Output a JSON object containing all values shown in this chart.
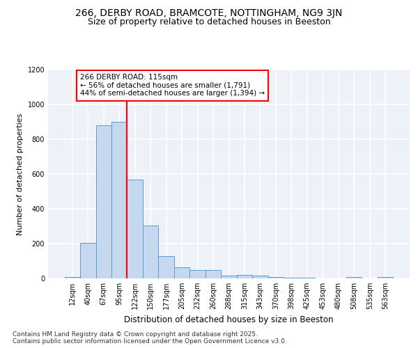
{
  "title1": "266, DERBY ROAD, BRAMCOTE, NOTTINGHAM, NG9 3JN",
  "title2": "Size of property relative to detached houses in Beeston",
  "xlabel": "Distribution of detached houses by size in Beeston",
  "ylabel": "Number of detached properties",
  "categories": [
    "12sqm",
    "40sqm",
    "67sqm",
    "95sqm",
    "122sqm",
    "150sqm",
    "177sqm",
    "205sqm",
    "232sqm",
    "260sqm",
    "288sqm",
    "315sqm",
    "343sqm",
    "370sqm",
    "398sqm",
    "425sqm",
    "453sqm",
    "480sqm",
    "508sqm",
    "535sqm",
    "563sqm"
  ],
  "values": [
    10,
    205,
    880,
    900,
    570,
    305,
    130,
    65,
    50,
    48,
    15,
    20,
    18,
    10,
    3,
    5,
    2,
    0,
    10,
    0,
    10
  ],
  "bar_color": "#c5d8ed",
  "bar_edge_color": "#5b9bd5",
  "vline_color": "red",
  "annotation_text": "266 DERBY ROAD: 115sqm\n← 56% of detached houses are smaller (1,791)\n44% of semi-detached houses are larger (1,394) →",
  "annotation_box_color": "white",
  "annotation_box_edge_color": "red",
  "ylim": [
    0,
    1200
  ],
  "yticks": [
    0,
    200,
    400,
    600,
    800,
    1000,
    1200
  ],
  "bg_color": "#eef2f8",
  "grid_color": "white",
  "footnote": "Contains HM Land Registry data © Crown copyright and database right 2025.\nContains public sector information licensed under the Open Government Licence v3.0.",
  "title1_fontsize": 10,
  "title2_fontsize": 9,
  "xlabel_fontsize": 8.5,
  "ylabel_fontsize": 8,
  "tick_fontsize": 7,
  "annot_fontsize": 7.5,
  "footnote_fontsize": 6.5
}
